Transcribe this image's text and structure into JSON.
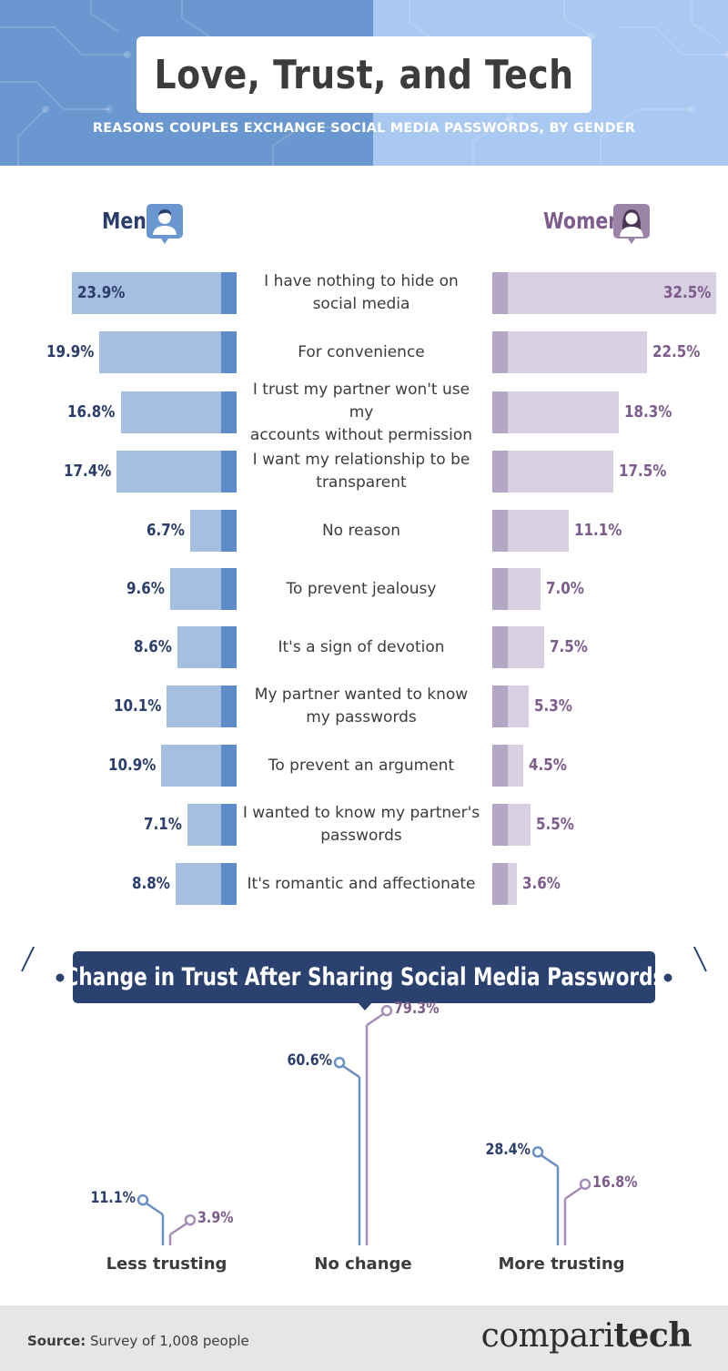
{
  "header": {
    "title": "Love, Trust, and Tech",
    "subtitle": "REASONS COUPLES EXCHANGE SOCIAL MEDIA PASSWORDS, BY GENDER"
  },
  "genders": {
    "men_label": "Men",
    "women_label": "Women",
    "men_icon": "man-avatar-icon",
    "women_icon": "woman-avatar-icon"
  },
  "colors": {
    "men_bar": "#a6bfe1",
    "men_bar_edge": "#5d8cc9",
    "women_bar": "#d9cfe3",
    "women_bar_edge": "#b4a6c5",
    "men_text": "#2b3e6b",
    "women_text": "#7d5c8c",
    "trust_men_line": "#6a8fc4",
    "trust_women_line": "#a58db6"
  },
  "chart_data": [
    {
      "type": "bar",
      "title": "REASONS COUPLES EXCHANGE SOCIAL MEDIA PASSWORDS, BY GENDER",
      "categories": [
        "I have nothing to hide on social media",
        "For convenience",
        "I trust my partner won't use my accounts without permission",
        "I want my relationship to be transparent",
        "No reason",
        "To prevent jealousy",
        "It's a sign of devotion",
        "My partner wanted to know my passwords",
        "To prevent an argument",
        "I wanted to know my partner's passwords",
        "It's romantic and affectionate"
      ],
      "category_lines": [
        [
          "I have nothing to hide on",
          "social media"
        ],
        [
          "For convenience"
        ],
        [
          "I trust my partner won't use my",
          "accounts without permission"
        ],
        [
          "I want my relationship to be",
          "transparent"
        ],
        [
          "No reason"
        ],
        [
          "To prevent jealousy"
        ],
        [
          "It's a sign of devotion"
        ],
        [
          "My partner wanted to know",
          "my passwords"
        ],
        [
          "To prevent an argument"
        ],
        [
          "I wanted to know my partner's",
          "passwords"
        ],
        [
          "It's romantic and affectionate"
        ]
      ],
      "series": [
        {
          "name": "Men",
          "values": [
            23.9,
            19.9,
            16.8,
            17.4,
            6.7,
            9.6,
            8.6,
            10.1,
            10.9,
            7.1,
            8.8
          ],
          "labels": [
            "23.9%",
            "19.9%",
            "16.8%",
            "17.4%",
            "6.7%",
            "9.6%",
            "8.6%",
            "10.1%",
            "10.9%",
            "7.1%",
            "8.8%"
          ]
        },
        {
          "name": "Women",
          "values": [
            32.5,
            22.5,
            18.3,
            17.5,
            11.1,
            7.0,
            7.5,
            5.3,
            4.5,
            5.5,
            3.6
          ],
          "labels": [
            "32.5%",
            "22.5%",
            "18.3%",
            "17.5%",
            "11.1%",
            "7.0%",
            "7.5%",
            "5.3%",
            "4.5%",
            "5.5%",
            "3.6%"
          ]
        }
      ],
      "xlim": [
        0,
        33
      ],
      "grid": false
    },
    {
      "type": "bar",
      "title": "Change in Trust After Sharing Social Media Passwords",
      "categories": [
        "Less trusting",
        "No change",
        "More trusting"
      ],
      "series": [
        {
          "name": "Men",
          "values": [
            11.1,
            60.6,
            28.4
          ],
          "labels": [
            "11.1%",
            "60.6%",
            "28.4%"
          ]
        },
        {
          "name": "Women",
          "values": [
            3.9,
            79.3,
            16.8
          ],
          "labels": [
            "3.9%",
            "79.3%",
            "16.8%"
          ]
        }
      ],
      "ylim": [
        0,
        80
      ],
      "grid": false
    }
  ],
  "footer": {
    "source_label": "Source:",
    "source_text": "Survey of 1,008 people",
    "brand_regular": "compari",
    "brand_bold": "tech"
  }
}
